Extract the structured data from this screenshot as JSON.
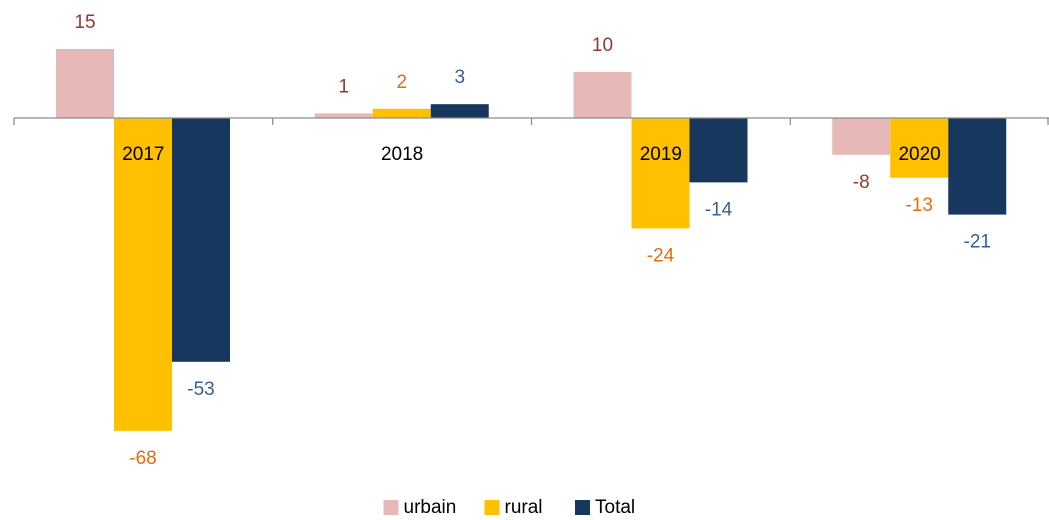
{
  "chart_data": {
    "type": "bar",
    "categories": [
      "2017",
      "2018",
      "2019",
      "2020"
    ],
    "series": [
      {
        "name": "urbain",
        "color": "#e6b9b8",
        "label_color": "#953735",
        "values": [
          15,
          1,
          10,
          -8
        ]
      },
      {
        "name": "rural",
        "color": "#ffc000",
        "label_color": "#e46c0a",
        "values": [
          -68,
          2,
          -24,
          -13
        ]
      },
      {
        "name": "Total",
        "color": "#17375e",
        "label_color": "#376092",
        "values": [
          -53,
          3,
          -14,
          -21
        ]
      }
    ],
    "ylim": [
      -70,
      20
    ],
    "legend": "bottom"
  }
}
